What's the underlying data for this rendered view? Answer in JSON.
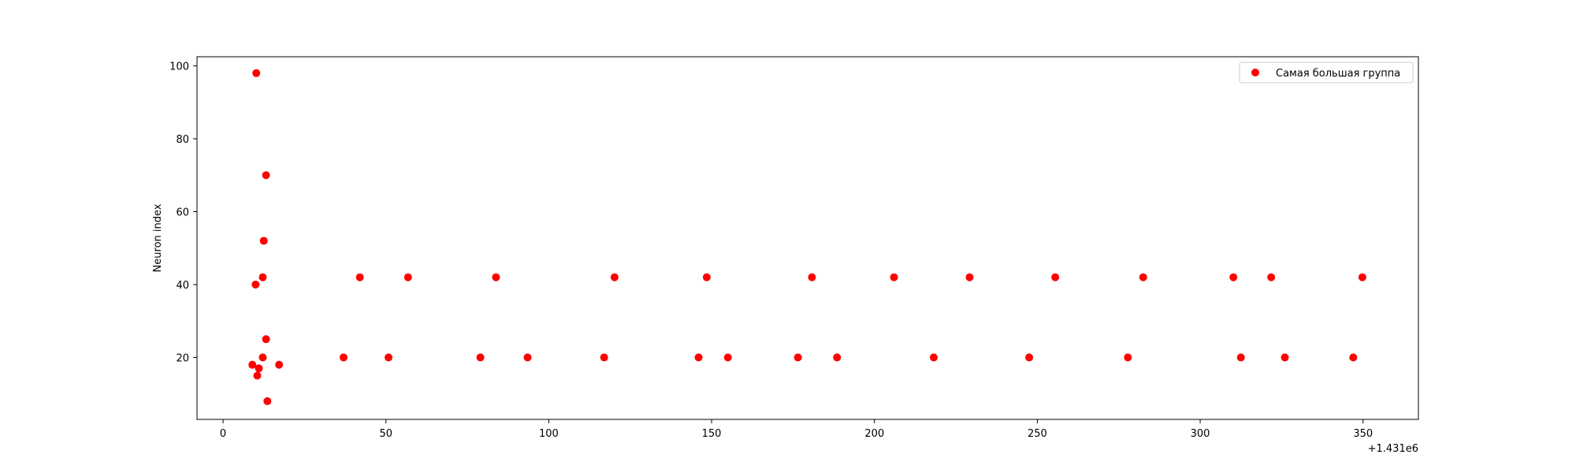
{
  "chart_data": {
    "type": "scatter",
    "title": "",
    "xlabel": "",
    "ylabel": "Neuron index",
    "x_offset_label": "+1.431e6",
    "xlim": [
      -8,
      367
    ],
    "ylim": [
      3,
      102.5
    ],
    "xticks": [
      0,
      50,
      100,
      150,
      200,
      250,
      300,
      350
    ],
    "yticks": [
      20,
      40,
      60,
      80,
      100
    ],
    "grid": false,
    "legend_position": "top-right",
    "series": [
      {
        "name": "Самая большая группа",
        "color": "#ff0000",
        "points": [
          {
            "x": 10.2,
            "y": 98
          },
          {
            "x": 13.2,
            "y": 70
          },
          {
            "x": 12.5,
            "y": 52
          },
          {
            "x": 12.2,
            "y": 42
          },
          {
            "x": 10.0,
            "y": 40
          },
          {
            "x": 13.2,
            "y": 25
          },
          {
            "x": 12.2,
            "y": 20
          },
          {
            "x": 9.0,
            "y": 18
          },
          {
            "x": 17.2,
            "y": 18
          },
          {
            "x": 11.0,
            "y": 17
          },
          {
            "x": 10.5,
            "y": 15
          },
          {
            "x": 13.6,
            "y": 8
          },
          {
            "x": 37.0,
            "y": 20
          },
          {
            "x": 42.0,
            "y": 42
          },
          {
            "x": 50.8,
            "y": 20
          },
          {
            "x": 56.8,
            "y": 42
          },
          {
            "x": 79.0,
            "y": 20
          },
          {
            "x": 83.8,
            "y": 42
          },
          {
            "x": 93.5,
            "y": 20
          },
          {
            "x": 117.0,
            "y": 20
          },
          {
            "x": 120.2,
            "y": 42
          },
          {
            "x": 146.0,
            "y": 20
          },
          {
            "x": 148.5,
            "y": 42
          },
          {
            "x": 155.0,
            "y": 20
          },
          {
            "x": 176.5,
            "y": 20
          },
          {
            "x": 180.8,
            "y": 42
          },
          {
            "x": 188.5,
            "y": 20
          },
          {
            "x": 206.0,
            "y": 42
          },
          {
            "x": 218.2,
            "y": 20
          },
          {
            "x": 229.2,
            "y": 42
          },
          {
            "x": 247.5,
            "y": 20
          },
          {
            "x": 255.5,
            "y": 42
          },
          {
            "x": 277.8,
            "y": 20
          },
          {
            "x": 282.5,
            "y": 42
          },
          {
            "x": 310.2,
            "y": 42
          },
          {
            "x": 312.5,
            "y": 20
          },
          {
            "x": 321.8,
            "y": 42
          },
          {
            "x": 326.0,
            "y": 20
          },
          {
            "x": 347.0,
            "y": 20
          },
          {
            "x": 349.8,
            "y": 42
          }
        ]
      }
    ]
  }
}
